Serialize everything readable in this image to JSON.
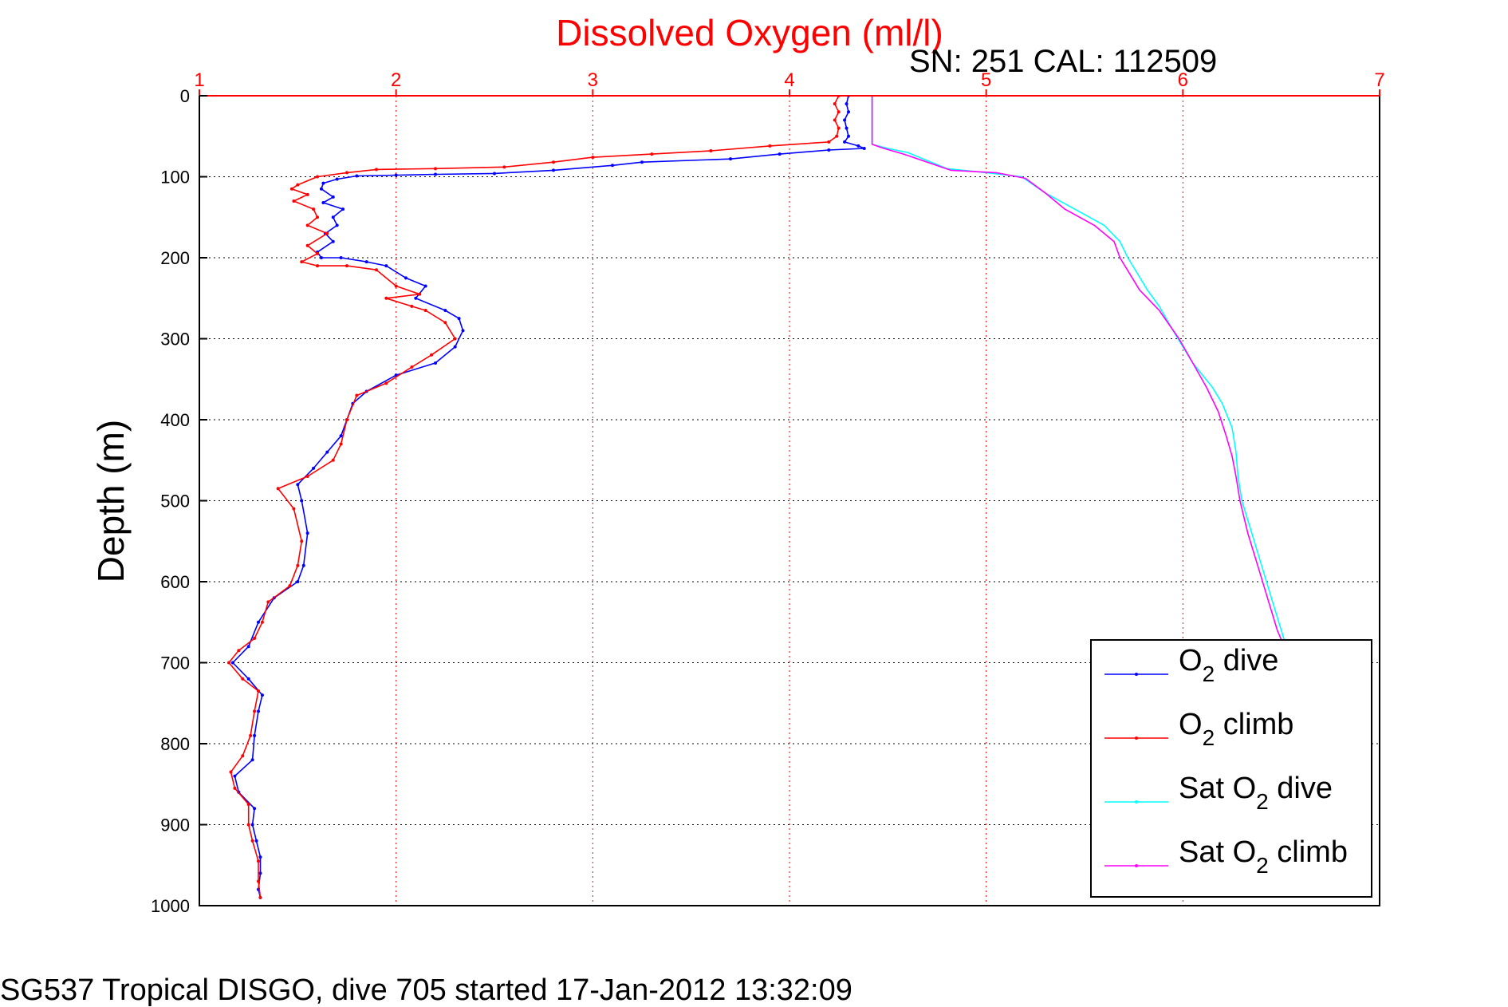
{
  "chart_data": {
    "type": "line",
    "title": "Dissolved Oxygen (ml/l)",
    "subtitle": "SN: 251  CAL: 112509",
    "ylabel": "Depth (m)",
    "footer": "SG537 Tropical DISGO, dive 705 started 17-Jan-2012 13:32:09",
    "xlim": [
      1,
      7
    ],
    "ylim": [
      0,
      1000
    ],
    "y_reversed": true,
    "x_axis_position": "top",
    "xticks": [
      1,
      2,
      3,
      4,
      5,
      6,
      7
    ],
    "yticks": [
      0,
      100,
      200,
      300,
      400,
      500,
      600,
      700,
      800,
      900,
      1000
    ],
    "grid": true,
    "legend_position": "bottom-right",
    "legend": [
      {
        "label": "O",
        "sub": "2",
        "rest": " dive"
      },
      {
        "label": "O",
        "sub": "2",
        "rest": " climb"
      },
      {
        "label": "Sat O",
        "sub": "2",
        "rest": " dive"
      },
      {
        "label": "Sat O",
        "sub": "2",
        "rest": " climb"
      }
    ],
    "series": [
      {
        "color": "#0000ff",
        "style": "line-dots",
        "points": [
          [
            4.3,
            0
          ],
          [
            4.29,
            10
          ],
          [
            4.3,
            20
          ],
          [
            4.28,
            30
          ],
          [
            4.29,
            40
          ],
          [
            4.3,
            50
          ],
          [
            4.28,
            57
          ],
          [
            4.35,
            62
          ],
          [
            4.38,
            65
          ],
          [
            4.2,
            67
          ],
          [
            3.95,
            72
          ],
          [
            3.7,
            78
          ],
          [
            3.25,
            82
          ],
          [
            3.1,
            86
          ],
          [
            2.8,
            92
          ],
          [
            2.5,
            96
          ],
          [
            2.2,
            97
          ],
          [
            2.0,
            98
          ],
          [
            1.8,
            99
          ],
          [
            1.7,
            103
          ],
          [
            1.63,
            108
          ],
          [
            1.62,
            115
          ],
          [
            1.68,
            125
          ],
          [
            1.63,
            132
          ],
          [
            1.73,
            140
          ],
          [
            1.68,
            150
          ],
          [
            1.7,
            160
          ],
          [
            1.64,
            170
          ],
          [
            1.68,
            180
          ],
          [
            1.6,
            193
          ],
          [
            1.62,
            200
          ],
          [
            1.72,
            200
          ],
          [
            1.85,
            205
          ],
          [
            1.95,
            210
          ],
          [
            2.05,
            225
          ],
          [
            2.15,
            235
          ],
          [
            2.1,
            250
          ],
          [
            2.25,
            265
          ],
          [
            2.32,
            275
          ],
          [
            2.34,
            290
          ],
          [
            2.3,
            310
          ],
          [
            2.2,
            330
          ],
          [
            2.0,
            345
          ],
          [
            1.85,
            365
          ],
          [
            1.78,
            380
          ],
          [
            1.75,
            400
          ],
          [
            1.72,
            420
          ],
          [
            1.65,
            440
          ],
          [
            1.58,
            460
          ],
          [
            1.5,
            480
          ],
          [
            1.52,
            500
          ],
          [
            1.55,
            540
          ],
          [
            1.53,
            580
          ],
          [
            1.5,
            600
          ],
          [
            1.38,
            620
          ],
          [
            1.3,
            650
          ],
          [
            1.25,
            680
          ],
          [
            1.17,
            700
          ],
          [
            1.25,
            720
          ],
          [
            1.32,
            740
          ],
          [
            1.3,
            760
          ],
          [
            1.28,
            790
          ],
          [
            1.27,
            820
          ],
          [
            1.18,
            840
          ],
          [
            1.2,
            860
          ],
          [
            1.28,
            880
          ],
          [
            1.27,
            900
          ],
          [
            1.29,
            920
          ],
          [
            1.31,
            940
          ],
          [
            1.31,
            960
          ],
          [
            1.3,
            980
          ],
          [
            1.31,
            990
          ]
        ]
      },
      {
        "color": "#ff0000",
        "style": "line-dots",
        "points": [
          [
            4.25,
            0
          ],
          [
            4.23,
            10
          ],
          [
            4.25,
            20
          ],
          [
            4.23,
            30
          ],
          [
            4.25,
            40
          ],
          [
            4.24,
            50
          ],
          [
            4.2,
            57
          ],
          [
            3.9,
            62
          ],
          [
            3.6,
            68
          ],
          [
            3.3,
            72
          ],
          [
            3.0,
            76
          ],
          [
            2.8,
            82
          ],
          [
            2.55,
            88
          ],
          [
            2.2,
            90
          ],
          [
            1.9,
            91
          ],
          [
            1.75,
            95
          ],
          [
            1.6,
            100
          ],
          [
            1.5,
            110
          ],
          [
            1.47,
            115
          ],
          [
            1.55,
            122
          ],
          [
            1.48,
            130
          ],
          [
            1.58,
            140
          ],
          [
            1.6,
            150
          ],
          [
            1.55,
            160
          ],
          [
            1.65,
            170
          ],
          [
            1.55,
            185
          ],
          [
            1.6,
            195
          ],
          [
            1.52,
            205
          ],
          [
            1.6,
            210
          ],
          [
            1.75,
            210
          ],
          [
            1.9,
            215
          ],
          [
            2.0,
            235
          ],
          [
            2.12,
            245
          ],
          [
            1.95,
            250
          ],
          [
            2.08,
            260
          ],
          [
            2.15,
            265
          ],
          [
            2.25,
            280
          ],
          [
            2.3,
            300
          ],
          [
            2.18,
            320
          ],
          [
            2.08,
            335
          ],
          [
            1.95,
            355
          ],
          [
            1.8,
            370
          ],
          [
            1.75,
            400
          ],
          [
            1.72,
            430
          ],
          [
            1.68,
            450
          ],
          [
            1.55,
            470
          ],
          [
            1.4,
            485
          ],
          [
            1.48,
            510
          ],
          [
            1.52,
            550
          ],
          [
            1.5,
            580
          ],
          [
            1.46,
            605
          ],
          [
            1.35,
            625
          ],
          [
            1.32,
            650
          ],
          [
            1.28,
            670
          ],
          [
            1.2,
            685
          ],
          [
            1.15,
            700
          ],
          [
            1.22,
            720
          ],
          [
            1.3,
            735
          ],
          [
            1.28,
            760
          ],
          [
            1.26,
            790
          ],
          [
            1.22,
            815
          ],
          [
            1.16,
            835
          ],
          [
            1.18,
            855
          ],
          [
            1.25,
            875
          ],
          [
            1.25,
            900
          ],
          [
            1.27,
            920
          ],
          [
            1.3,
            945
          ],
          [
            1.3,
            970
          ],
          [
            1.31,
            990
          ]
        ]
      },
      {
        "color": "#00ffff",
        "style": "line",
        "points": [
          [
            4.42,
            0
          ],
          [
            4.42,
            60
          ],
          [
            4.5,
            65
          ],
          [
            4.6,
            70
          ],
          [
            4.7,
            80
          ],
          [
            4.8,
            90
          ],
          [
            5.0,
            95
          ],
          [
            5.18,
            100
          ],
          [
            5.3,
            120
          ],
          [
            5.45,
            140
          ],
          [
            5.6,
            160
          ],
          [
            5.68,
            180
          ],
          [
            5.72,
            200
          ],
          [
            5.82,
            240
          ],
          [
            5.88,
            260
          ],
          [
            5.95,
            290
          ],
          [
            6.05,
            330
          ],
          [
            6.15,
            360
          ],
          [
            6.2,
            380
          ],
          [
            6.25,
            410
          ],
          [
            6.27,
            440
          ],
          [
            6.28,
            470
          ],
          [
            6.3,
            500
          ],
          [
            6.35,
            540
          ],
          [
            6.4,
            580
          ],
          [
            6.45,
            620
          ],
          [
            6.5,
            660
          ],
          [
            6.55,
            700
          ],
          [
            6.62,
            750
          ],
          [
            6.68,
            800
          ],
          [
            6.72,
            850
          ],
          [
            6.76,
            900
          ],
          [
            6.8,
            950
          ],
          [
            6.85,
            990
          ]
        ]
      },
      {
        "color": "#ff00ff",
        "style": "line",
        "points": [
          [
            4.42,
            0
          ],
          [
            4.42,
            60
          ],
          [
            4.48,
            65
          ],
          [
            4.58,
            72
          ],
          [
            4.7,
            82
          ],
          [
            4.82,
            92
          ],
          [
            5.05,
            95
          ],
          [
            5.2,
            102
          ],
          [
            5.3,
            120
          ],
          [
            5.4,
            140
          ],
          [
            5.55,
            160
          ],
          [
            5.65,
            180
          ],
          [
            5.68,
            200
          ],
          [
            5.78,
            240
          ],
          [
            5.88,
            265
          ],
          [
            5.98,
            300
          ],
          [
            6.05,
            330
          ],
          [
            6.12,
            360
          ],
          [
            6.18,
            390
          ],
          [
            6.22,
            420
          ],
          [
            6.25,
            445
          ],
          [
            6.27,
            470
          ],
          [
            6.29,
            500
          ],
          [
            6.33,
            540
          ],
          [
            6.38,
            580
          ],
          [
            6.43,
            620
          ],
          [
            6.48,
            660
          ],
          [
            6.55,
            700
          ],
          [
            6.62,
            750
          ],
          [
            6.68,
            800
          ],
          [
            6.72,
            850
          ],
          [
            6.76,
            900
          ],
          [
            6.8,
            950
          ],
          [
            6.85,
            990
          ]
        ]
      }
    ]
  }
}
